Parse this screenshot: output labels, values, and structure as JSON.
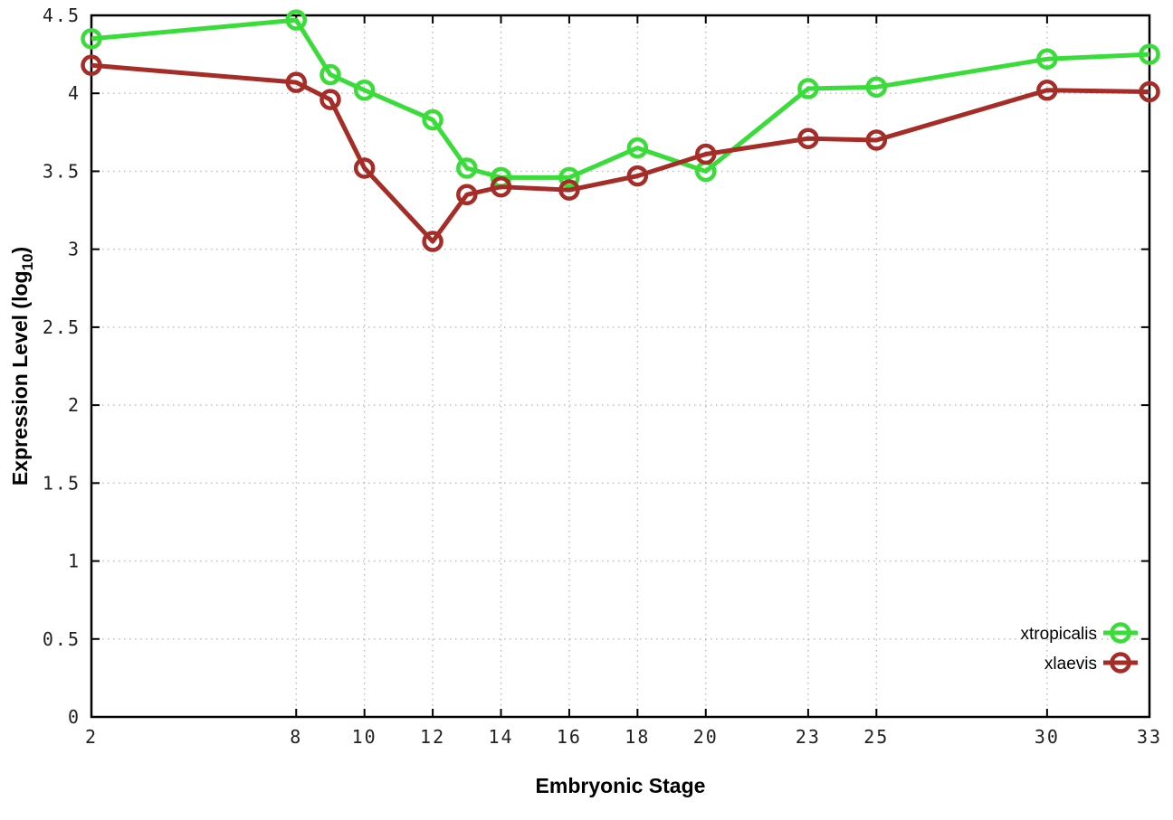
{
  "chart_data": {
    "type": "line",
    "title": "",
    "xlabel": "Embryonic Stage",
    "ylabel": {
      "prefix": "Expression Level (log",
      "sub": "10",
      "suffix": ")"
    },
    "x": [
      2,
      8,
      9,
      10,
      12,
      13,
      14,
      16,
      18,
      20,
      23,
      25,
      30,
      33
    ],
    "xticks": [
      2,
      8,
      10,
      12,
      14,
      16,
      18,
      20,
      23,
      25,
      30,
      33
    ],
    "xtick_labels": [
      "2",
      "8",
      "10",
      "12",
      "14",
      "16",
      "18",
      "20",
      "23",
      "25",
      "30",
      "33"
    ],
    "yticks": [
      0,
      0.5,
      1,
      1.5,
      2,
      2.5,
      3,
      3.5,
      4,
      4.5
    ],
    "ytick_labels": [
      "0",
      "0.5",
      "1",
      "1.5",
      "2",
      "2.5",
      "3",
      "3.5",
      "4",
      "4.5"
    ],
    "xlim": [
      2,
      33
    ],
    "ylim": [
      0,
      4.5
    ],
    "grid": true,
    "legend_position": "inside-bottom-right",
    "series": [
      {
        "name": "xtropicalis",
        "color": "#3adc3a",
        "values": [
          4.35,
          4.47,
          4.12,
          4.02,
          3.83,
          3.52,
          3.46,
          3.46,
          3.65,
          3.5,
          4.03,
          4.04,
          4.22,
          4.25
        ]
      },
      {
        "name": "xlaevis",
        "color": "#a62c28",
        "values": [
          4.18,
          4.07,
          3.96,
          3.52,
          3.05,
          3.35,
          3.4,
          3.38,
          3.47,
          3.61,
          3.71,
          3.7,
          4.02,
          4.01
        ]
      }
    ]
  },
  "style": {
    "background": "#ffffff",
    "grid_color": "#b9b9b9",
    "axis_color": "#000000",
    "tick_label_color": "#222222"
  }
}
